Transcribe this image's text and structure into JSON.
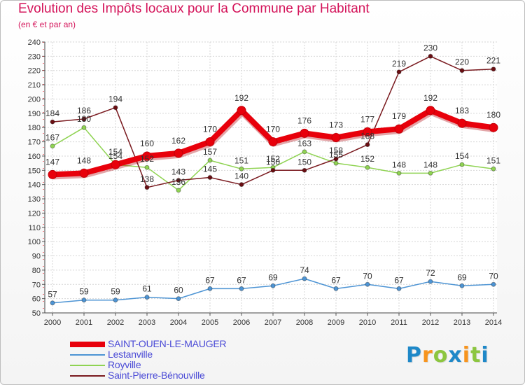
{
  "title": "Evolution des Impôts locaux pour la Commune par Habitant",
  "subtitle": "(en € et par an)",
  "logo": {
    "letters": [
      "P",
      "r",
      "o",
      "x",
      "i",
      "t",
      "i"
    ],
    "colors": [
      "#1e88c8",
      "#f7941d",
      "#8cc63f",
      "#1e88c8",
      "#f7941d",
      "#8cc63f",
      "#1e88c8"
    ]
  },
  "chart_data": {
    "type": "line",
    "title": "Evolution des Impôts locaux pour la Commune par Habitant",
    "subtitle": "(en € et par an)",
    "x": [
      "2000",
      "2001",
      "2002",
      "2003",
      "2004",
      "2005",
      "2006",
      "2007",
      "2008",
      "2009",
      "2010",
      "2011",
      "2012",
      "2013",
      "2014"
    ],
    "ylim": [
      50,
      240
    ],
    "yticks": [
      50,
      60,
      70,
      80,
      90,
      100,
      110,
      120,
      130,
      140,
      150,
      160,
      170,
      180,
      190,
      200,
      210,
      220,
      230,
      240
    ],
    "grid": true,
    "legend_position": "bottom-left",
    "series": [
      {
        "name": "SAINT-OUEN-LE-MAUGER",
        "color": "#e8000b",
        "values": [
          147,
          148,
          154,
          160,
          162,
          170,
          192,
          170,
          176,
          173,
          177,
          179,
          192,
          183,
          180
        ]
      },
      {
        "name": "Lestanville",
        "color": "#4d94d4",
        "values": [
          57,
          59,
          59,
          61,
          60,
          67,
          67,
          69,
          74,
          67,
          70,
          67,
          72,
          69,
          70
        ]
      },
      {
        "name": "Royville",
        "color": "#8fd352",
        "values": [
          167,
          180,
          154,
          152,
          136,
          157,
          151,
          152,
          163,
          155,
          152,
          148,
          148,
          154,
          151
        ]
      },
      {
        "name": "Saint-Pierre-Bénouville",
        "color": "#7a1a1f",
        "values": [
          184,
          186,
          194,
          138,
          143,
          145,
          140,
          150,
          150,
          158,
          168,
          219,
          230,
          220,
          221
        ]
      }
    ],
    "data_labels": [
      {
        "series": 0,
        "index": 0,
        "text": "147"
      },
      {
        "series": 0,
        "index": 1,
        "text": "148"
      },
      {
        "series": 0,
        "index": 2,
        "text": "154"
      },
      {
        "series": 0,
        "index": 3,
        "text": "160"
      },
      {
        "series": 0,
        "index": 4,
        "text": "162"
      },
      {
        "series": 0,
        "index": 5,
        "text": "170"
      },
      {
        "series": 0,
        "index": 6,
        "text": "192"
      },
      {
        "series": 0,
        "index": 7,
        "text": "170"
      },
      {
        "series": 0,
        "index": 8,
        "text": "176"
      },
      {
        "series": 0,
        "index": 9,
        "text": "173"
      },
      {
        "series": 0,
        "index": 10,
        "text": "177"
      },
      {
        "series": 0,
        "index": 11,
        "text": "179"
      },
      {
        "series": 0,
        "index": 12,
        "text": "192"
      },
      {
        "series": 0,
        "index": 13,
        "text": "183"
      },
      {
        "series": 0,
        "index": 14,
        "text": "180"
      },
      {
        "series": 1,
        "index": 0,
        "text": "57"
      },
      {
        "series": 1,
        "index": 1,
        "text": "59"
      },
      {
        "series": 1,
        "index": 2,
        "text": "59"
      },
      {
        "series": 1,
        "index": 3,
        "text": "61"
      },
      {
        "series": 1,
        "index": 4,
        "text": "60"
      },
      {
        "series": 1,
        "index": 5,
        "text": "67"
      },
      {
        "series": 1,
        "index": 6,
        "text": "67"
      },
      {
        "series": 1,
        "index": 7,
        "text": "69"
      },
      {
        "series": 1,
        "index": 8,
        "text": "74"
      },
      {
        "series": 1,
        "index": 9,
        "text": "67"
      },
      {
        "series": 1,
        "index": 10,
        "text": "70"
      },
      {
        "series": 1,
        "index": 11,
        "text": "67"
      },
      {
        "series": 1,
        "index": 12,
        "text": "72"
      },
      {
        "series": 1,
        "index": 13,
        "text": "69"
      },
      {
        "series": 1,
        "index": 14,
        "text": "70"
      },
      {
        "series": 2,
        "index": 0,
        "text": "167"
      },
      {
        "series": 2,
        "index": 1,
        "text": "180"
      },
      {
        "series": 2,
        "index": 2,
        "text": "154"
      },
      {
        "series": 2,
        "index": 3,
        "text": "152"
      },
      {
        "series": 2,
        "index": 4,
        "text": "136"
      },
      {
        "series": 2,
        "index": 5,
        "text": "157"
      },
      {
        "series": 2,
        "index": 6,
        "text": "151"
      },
      {
        "series": 2,
        "index": 7,
        "text": "152"
      },
      {
        "series": 2,
        "index": 8,
        "text": "163"
      },
      {
        "series": 2,
        "index": 9,
        "text": "155"
      },
      {
        "series": 2,
        "index": 10,
        "text": "152"
      },
      {
        "series": 2,
        "index": 11,
        "text": "148"
      },
      {
        "series": 2,
        "index": 12,
        "text": "148"
      },
      {
        "series": 2,
        "index": 13,
        "text": "154"
      },
      {
        "series": 2,
        "index": 14,
        "text": "151"
      },
      {
        "series": 3,
        "index": 0,
        "text": "184"
      },
      {
        "series": 3,
        "index": 1,
        "text": "186"
      },
      {
        "series": 3,
        "index": 2,
        "text": "194"
      },
      {
        "series": 3,
        "index": 3,
        "text": "138"
      },
      {
        "series": 3,
        "index": 4,
        "text": "143"
      },
      {
        "series": 3,
        "index": 5,
        "text": "145"
      },
      {
        "series": 3,
        "index": 6,
        "text": "140"
      },
      {
        "series": 3,
        "index": 7,
        "text": "150"
      },
      {
        "series": 3,
        "index": 8,
        "text": "150"
      },
      {
        "series": 3,
        "index": 9,
        "text": "158"
      },
      {
        "series": 3,
        "index": 10,
        "text": "168"
      },
      {
        "series": 3,
        "index": 11,
        "text": "219"
      },
      {
        "series": 3,
        "index": 12,
        "text": "230"
      },
      {
        "series": 3,
        "index": 13,
        "text": "220"
      },
      {
        "series": 3,
        "index": 14,
        "text": "221"
      }
    ]
  }
}
